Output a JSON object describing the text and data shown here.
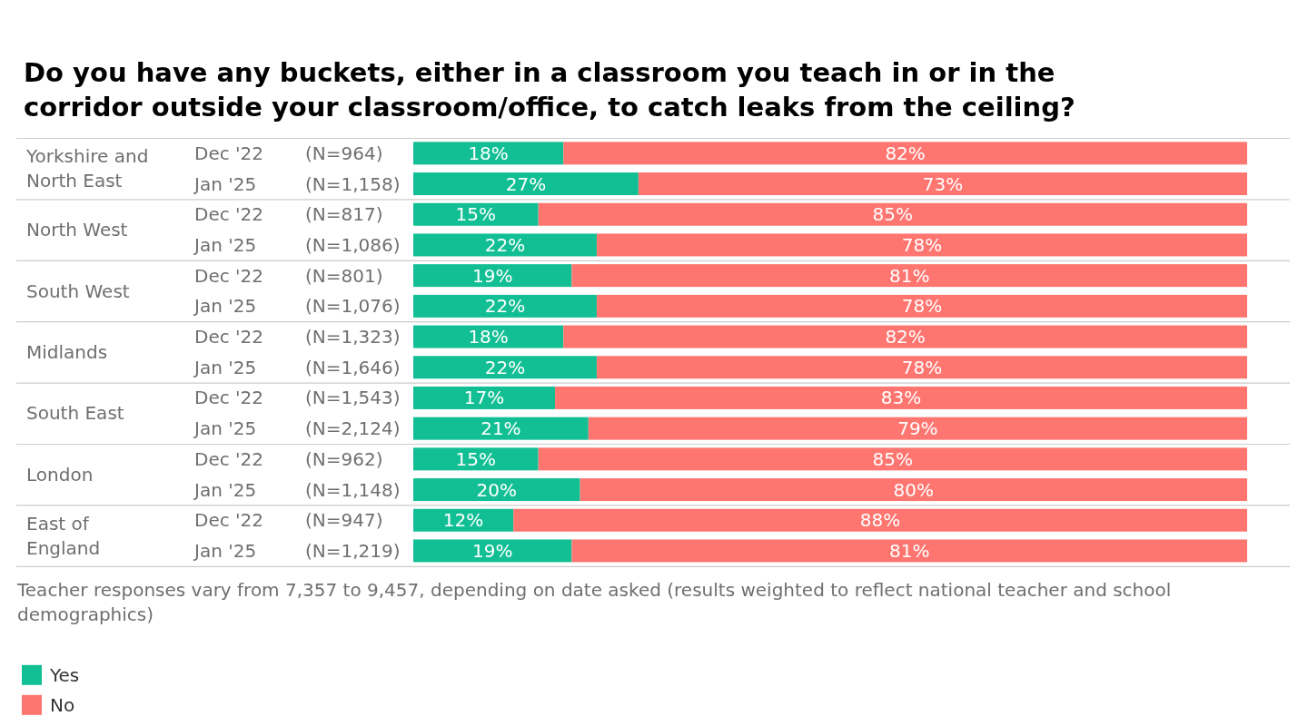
{
  "chart_data": {
    "type": "bar",
    "orientation": "horizontal",
    "stacked": true,
    "title": "Do you have any buckets, either in a classroom you teach in or in the corridor outside your classroom/office, to catch leaks from the ceiling?",
    "categories": [
      "Dec '22 (N=964)",
      "Jan '25 (N=1,158)",
      "Dec '22 (N=817)",
      "Jan '25 (N=1,086)",
      "Dec '22 (N=801)",
      "Jan '25 (N=1,076)",
      "Dec '22 (N=1,323)",
      "Jan '25 (N=1,646)",
      "Dec '22 (N=1,543)",
      "Jan '25 (N=2,124)",
      "Dec '22 (N=962)",
      "Jan '25 (N=1,148)",
      "Dec '22 (N=947)",
      "Jan '25 (N=1,219)"
    ],
    "series": [
      {
        "name": "Yes",
        "color": "#12bf94",
        "values": [
          18,
          27,
          15,
          22,
          19,
          22,
          18,
          22,
          17,
          21,
          15,
          20,
          12,
          19
        ],
        "value_labels": [
          "18%",
          "27%",
          "15%",
          "22%",
          "19%",
          "22%",
          "18%",
          "22%",
          "17%",
          "21%",
          "15%",
          "20%",
          "12%",
          "19%"
        ]
      },
      {
        "name": "No",
        "color": "#ff7570",
        "values": [
          82,
          73,
          85,
          78,
          81,
          78,
          82,
          78,
          83,
          79,
          85,
          80,
          88,
          81
        ],
        "value_labels": [
          "82%",
          "73%",
          "85%",
          "78%",
          "81%",
          "78%",
          "82%",
          "78%",
          "83%",
          "79%",
          "85%",
          "80%",
          "88%",
          "81%"
        ]
      }
    ],
    "xlim": [
      0,
      100
    ],
    "tick_labels": "y",
    "legend": "bottom",
    "annotations": [
      "Yorkshire and North East",
      "North West",
      "South West",
      "Midlands",
      "South East",
      "London",
      "East of England",
      "Teacher responses vary from 7,357 to 9,457, depending on date asked (results weighted to reflect national teacher and school demographics)"
    ]
  }
}
